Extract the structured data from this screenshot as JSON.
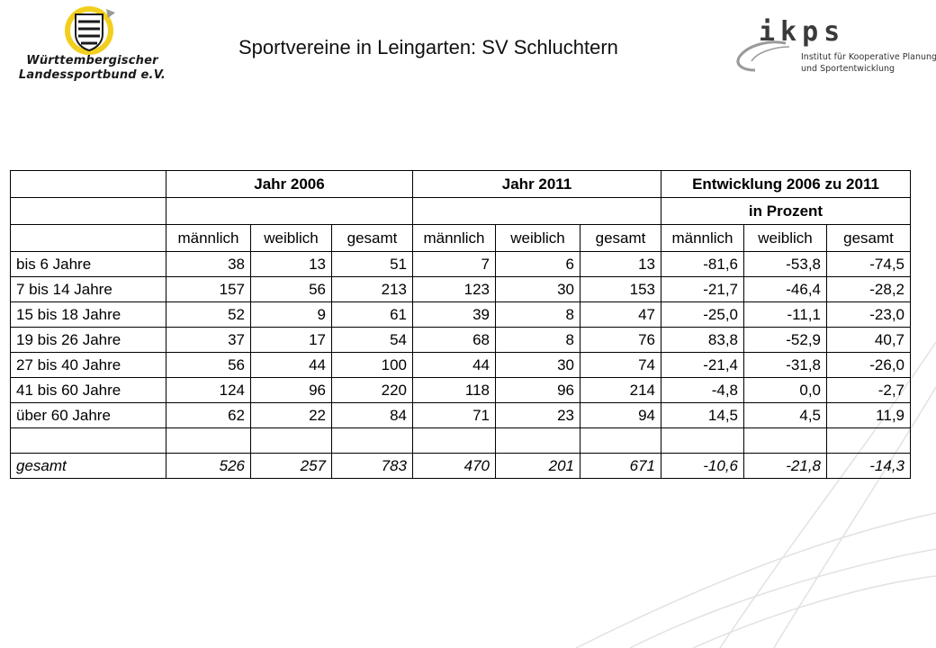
{
  "logo_left": {
    "line1": "Württembergischer",
    "line2": "Landessportbund e.V.",
    "icon": "wuerttemberg-crest-icon"
  },
  "title": "Sportvereine in Leingarten: SV Schluchtern",
  "logo_right": {
    "wordmark": "ikps",
    "sub1": "Institut für Kooperative Planung",
    "sub2": "und Sportentwicklung"
  },
  "colors": {
    "logo_yellow": "#f2cf1e",
    "logo_gray": "#9a9a9a",
    "curve_gray": "#e2e2e2"
  },
  "table": {
    "group_headers": [
      "Jahr 2006",
      "Jahr 2011",
      "Entwicklung 2006 zu 2011"
    ],
    "percent_header": "in Prozent",
    "sub_headers": [
      "männlich",
      "weiblich",
      "gesamt",
      "männlich",
      "weiblich",
      "gesamt",
      "männlich",
      "weiblich",
      "gesamt"
    ],
    "rows": [
      {
        "label": "bis 6 Jahre",
        "values": [
          "38",
          "13",
          "51",
          "7",
          "6",
          "13",
          "-81,6",
          "-53,8",
          "-74,5"
        ]
      },
      {
        "label": "7 bis 14 Jahre",
        "values": [
          "157",
          "56",
          "213",
          "123",
          "30",
          "153",
          "-21,7",
          "-46,4",
          "-28,2"
        ]
      },
      {
        "label": "15 bis 18 Jahre",
        "values": [
          "52",
          "9",
          "61",
          "39",
          "8",
          "47",
          "-25,0",
          "-11,1",
          "-23,0"
        ]
      },
      {
        "label": "19 bis 26 Jahre",
        "values": [
          "37",
          "17",
          "54",
          "68",
          "8",
          "76",
          "83,8",
          "-52,9",
          "40,7"
        ]
      },
      {
        "label": "27 bis 40 Jahre",
        "values": [
          "56",
          "44",
          "100",
          "44",
          "30",
          "74",
          "-21,4",
          "-31,8",
          "-26,0"
        ]
      },
      {
        "label": "41 bis 60 Jahre",
        "values": [
          "124",
          "96",
          "220",
          "118",
          "96",
          "214",
          "-4,8",
          "0,0",
          "-2,7"
        ]
      },
      {
        "label": "über 60 Jahre",
        "values": [
          "62",
          "22",
          "84",
          "71",
          "23",
          "94",
          "14,5",
          "4,5",
          "11,9"
        ]
      }
    ],
    "total": {
      "label": "gesamt",
      "values": [
        "526",
        "257",
        "783",
        "470",
        "201",
        "671",
        "-10,6",
        "-21,8",
        "-14,3"
      ]
    }
  }
}
